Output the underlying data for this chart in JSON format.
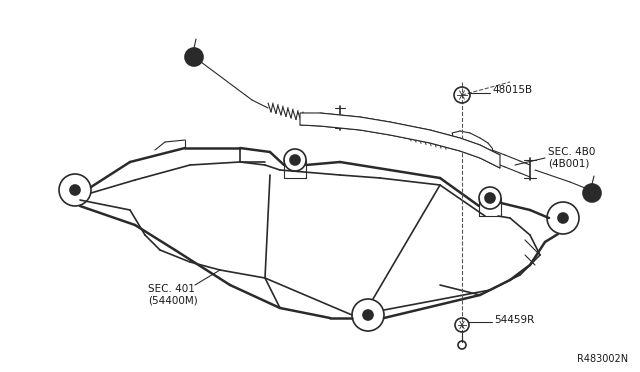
{
  "bg_color": "#ffffff",
  "line_color": "#2a2a2a",
  "dashed_color": "#555555",
  "label_color": "#1a1a1a",
  "diagram_ref": "R483002N",
  "labels": {
    "top_right_bolt": "48015B",
    "steering_gear": "SEC. 4B0\n(4B001)",
    "subframe": "SEC. 401\n(54400M)",
    "bolt_bottom": "54459R"
  }
}
